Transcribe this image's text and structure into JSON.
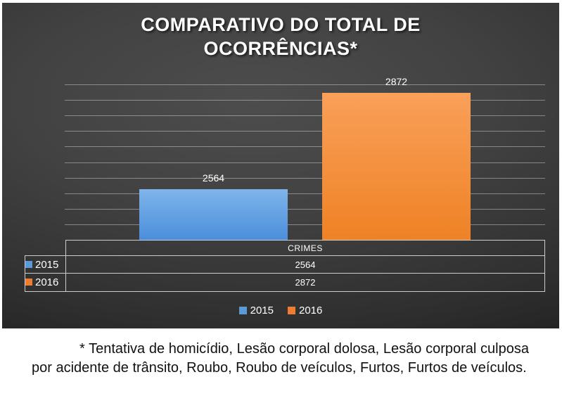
{
  "chart_data": {
    "type": "bar",
    "title": "COMPARATIVO DO TOTAL DE OCORRÊNCIAS*",
    "categories": [
      "CRIMES"
    ],
    "series": [
      {
        "name": "2015",
        "values": [
          2564
        ],
        "color": "#5B9BD5",
        "fill_top": "#7FB5EA",
        "fill_bottom": "#4A8EDB"
      },
      {
        "name": "2016",
        "values": [
          2872
        ],
        "color": "#ED7D31",
        "fill_top": "#F9A05A",
        "fill_bottom": "#EF8225"
      }
    ],
    "ylim": [
      2400,
      2900
    ],
    "gridline_step": 50,
    "grid": true,
    "legend_position": "bottom",
    "data_labels": true,
    "data_table_shown": true
  },
  "table": {
    "header": "CRIMES",
    "rows": [
      {
        "label": "2015",
        "value": "2564"
      },
      {
        "label": "2016",
        "value": "2872"
      }
    ]
  },
  "legend": {
    "items": [
      {
        "label": "2015",
        "color": "#5B9BD5"
      },
      {
        "label": "2016",
        "color": "#ED7D31"
      }
    ]
  },
  "footnote": "* Tentativa de homicídio, Lesão corporal dolosa, Lesão corporal culposa por acidente de trânsito, Roubo, Roubo de veículos, Furtos, Furtos de veículos.",
  "colors": {
    "panel_center": "#4d4d4d",
    "panel_edge": "#1b1b1b",
    "gridline": "rgba(255,255,255,0.38)",
    "table_border": "#cccccc",
    "chart_text": "#ffffff",
    "footnote_text": "#111111",
    "page_background": "#ffffff"
  }
}
